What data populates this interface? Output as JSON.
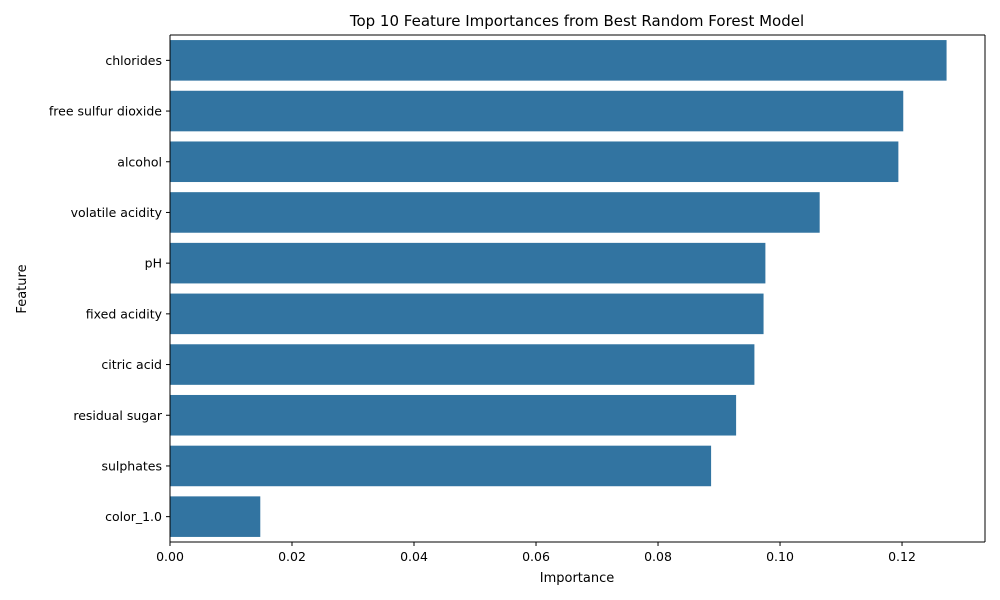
{
  "chart_data": {
    "type": "bar",
    "orientation": "horizontal",
    "title": "Top 10 Feature Importances from Best Random Forest Model",
    "xlabel": "Importance",
    "ylabel": "Feature",
    "categories": [
      "chlorides",
      "free sulfur dioxide",
      "alcohol",
      "volatile acidity",
      "pH",
      "fixed acidity",
      "citric acid",
      "residual sugar",
      "sulphates",
      "color_1.0"
    ],
    "values": [
      0.1273,
      0.1202,
      0.1194,
      0.1065,
      0.0976,
      0.0973,
      0.0958,
      0.0928,
      0.0887,
      0.0148
    ],
    "xlim": [
      0,
      0.1336
    ],
    "xticks": [
      0.0,
      0.02,
      0.04,
      0.06,
      0.08,
      0.1,
      0.12
    ],
    "xtick_labels": [
      "0.00",
      "0.02",
      "0.04",
      "0.06",
      "0.08",
      "0.10",
      "0.12"
    ],
    "bar_color": "#3274a1",
    "grid": false,
    "legend": "none"
  }
}
